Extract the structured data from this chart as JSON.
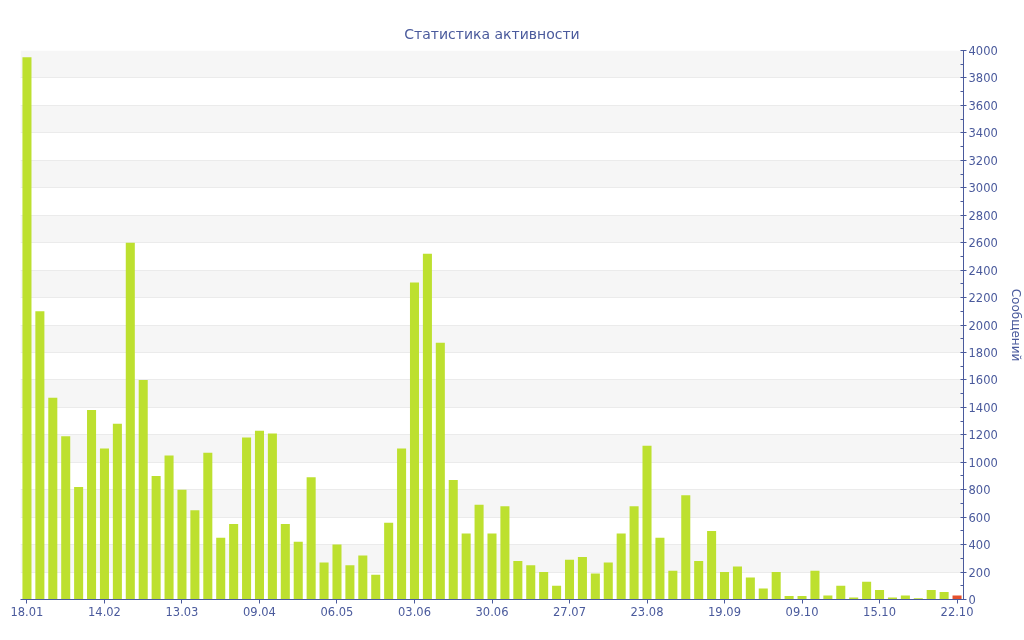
{
  "chart_data": {
    "type": "bar",
    "title": "Статистика активности",
    "ylabel": "Сообщений",
    "categories": [
      "18.01",
      null,
      null,
      null,
      null,
      null,
      "14.02",
      null,
      null,
      null,
      null,
      null,
      "13.03",
      null,
      null,
      null,
      null,
      null,
      "09.04",
      null,
      null,
      null,
      null,
      null,
      "06.05",
      null,
      null,
      null,
      null,
      null,
      "03.06",
      null,
      null,
      null,
      null,
      null,
      "30.06",
      null,
      null,
      null,
      null,
      null,
      "27.07",
      null,
      null,
      null,
      null,
      null,
      "23.08",
      null,
      null,
      null,
      null,
      null,
      "19.09",
      null,
      null,
      null,
      null,
      null,
      "09.10",
      null,
      null,
      null,
      null,
      null,
      "15.10",
      null,
      null,
      null,
      null,
      null,
      "22.10"
    ],
    "values": [
      3950,
      2100,
      1470,
      1190,
      820,
      1380,
      1100,
      1280,
      2600,
      1600,
      900,
      1050,
      800,
      650,
      1070,
      450,
      550,
      1180,
      1230,
      1210,
      550,
      420,
      890,
      270,
      400,
      250,
      320,
      180,
      560,
      1100,
      2310,
      2520,
      1870,
      870,
      480,
      690,
      480,
      680,
      280,
      250,
      200,
      100,
      290,
      310,
      190,
      270,
      480,
      680,
      1120,
      450,
      210,
      760,
      280,
      500,
      200,
      240,
      160,
      80,
      200,
      25,
      25,
      210,
      30,
      100,
      15,
      130,
      70,
      15,
      30,
      10,
      70,
      55,
      30
    ],
    "colors": [
      "#bde02f",
      "#bde02f",
      "#bde02f",
      "#bde02f",
      "#bde02f",
      "#bde02f",
      "#bde02f",
      "#bde02f",
      "#bde02f",
      "#bde02f",
      "#bde02f",
      "#bde02f",
      "#bde02f",
      "#bde02f",
      "#bde02f",
      "#bde02f",
      "#bde02f",
      "#bde02f",
      "#bde02f",
      "#bde02f",
      "#bde02f",
      "#bde02f",
      "#bde02f",
      "#bde02f",
      "#bde02f",
      "#bde02f",
      "#bde02f",
      "#bde02f",
      "#bde02f",
      "#bde02f",
      "#bde02f",
      "#bde02f",
      "#bde02f",
      "#bde02f",
      "#bde02f",
      "#bde02f",
      "#bde02f",
      "#bde02f",
      "#bde02f",
      "#bde02f",
      "#bde02f",
      "#bde02f",
      "#bde02f",
      "#bde02f",
      "#bde02f",
      "#bde02f",
      "#bde02f",
      "#bde02f",
      "#bde02f",
      "#bde02f",
      "#bde02f",
      "#bde02f",
      "#bde02f",
      "#bde02f",
      "#bde02f",
      "#bde02f",
      "#bde02f",
      "#bde02f",
      "#bde02f",
      "#bde02f",
      "#bde02f",
      "#bde02f",
      "#bde02f",
      "#bde02f",
      "#bde02f",
      "#bde02f",
      "#bde02f",
      "#bde02f",
      "#bde02f",
      "#bde02f",
      "#bde02f",
      "#bde02f",
      "#e4502c"
    ],
    "ylim": [
      0,
      4000
    ],
    "yticks": [
      0,
      {
        "value": 100,
        "label": null
      },
      200,
      {
        "value": 300,
        "label": null
      },
      400,
      {
        "value": 500,
        "label": null
      },
      600,
      {
        "value": 700,
        "label": null
      },
      800,
      {
        "value": 900,
        "label": null
      },
      1000,
      {
        "value": 1100,
        "label": null
      },
      1200,
      {
        "value": 1300,
        "label": null
      },
      1400,
      {
        "value": 1500,
        "label": null
      },
      1600,
      {
        "value": 1700,
        "label": null
      },
      1800,
      {
        "value": 1900,
        "label": null
      },
      2000,
      {
        "value": 2100,
        "label": null
      },
      2200,
      {
        "value": 2300,
        "label": null
      },
      2400,
      {
        "value": 2500,
        "label": null
      },
      2600,
      {
        "value": 2700,
        "label": null
      },
      2800,
      {
        "value": 2900,
        "label": null
      },
      3000,
      {
        "value": 3100,
        "label": null
      },
      3200,
      {
        "value": 3300,
        "label": null
      },
      3400,
      {
        "value": 3500,
        "label": null
      },
      3600,
      {
        "value": 3700,
        "label": null
      },
      3800,
      {
        "value": 3900,
        "label": null
      },
      4000
    ],
    "grid": "y"
  }
}
